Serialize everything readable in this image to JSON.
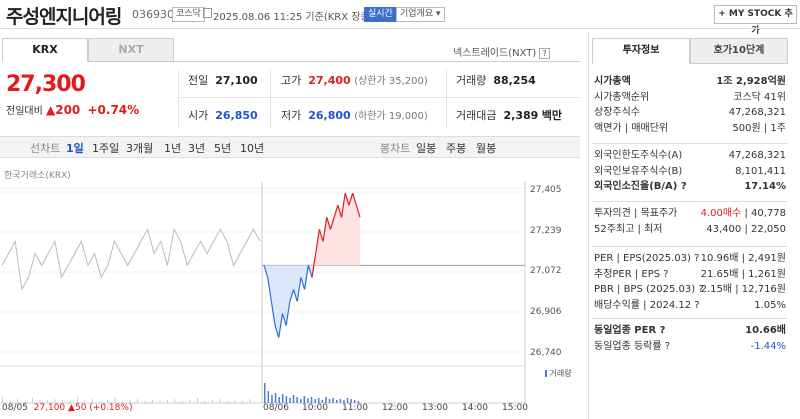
{
  "header": {
    "stock_name": "주성엔지니어링",
    "stock_code": "036930",
    "market_badge": "코스닥",
    "datetime": "2025.08.06 11:25 기준(KRX 장중)",
    "realtime_badge": "실시간",
    "company_overview": "기업개요",
    "mystock_button": "+ MY STOCK 추가"
  },
  "tabs": {
    "krx": "KRX",
    "nxt": "NXT",
    "nxt_link": "넥스트레이드(NXT)"
  },
  "quote": {
    "price": "27,300",
    "change_label": "전일대비",
    "change_arrow": "▲",
    "change_value": "200",
    "change_pct": "+0.74%"
  },
  "info": {
    "prev_label": "전일",
    "prev_value": "27,100",
    "high_label": "고가",
    "high_value": "27,400",
    "upper_limit": "(상한가 35,200)",
    "volume_label": "거래량",
    "volume_value": "88,254",
    "open_label": "시가",
    "open_value": "26,850",
    "low_label": "저가",
    "low_value": "26,800",
    "lower_limit": "(하한가 19,000)",
    "amount_label": "거래대금",
    "amount_value": "2,389",
    "amount_unit": "백만"
  },
  "periods": {
    "line": "선차트",
    "items": [
      "1일",
      "1주일",
      "3개월",
      "1년",
      "3년",
      "5년",
      "10년"
    ],
    "candle": "봉차트",
    "candle_items": [
      "일봉",
      "주봉",
      "월봉"
    ]
  },
  "chart": {
    "exchange_label": "한국거래소(KRX)",
    "volume_legend": "거래량",
    "bottom_date": "08/05",
    "bottom_price": "27,100",
    "bottom_change": "▲50",
    "bottom_pct": "(+0.18%)"
  },
  "chart_data": {
    "type": "line",
    "y_ticks": [
      "27,405",
      "27,239",
      "27,072",
      "26,906",
      "26,740"
    ],
    "ylim": [
      26740,
      27405
    ],
    "x_ticks": [
      "08/06",
      "10:00",
      "11:00",
      "12:00",
      "13:00",
      "14:00",
      "15:00"
    ],
    "reference_price": 27100,
    "prev_day_series": [
      27100,
      27150,
      27200,
      27000,
      27050,
      27150,
      27100,
      27150,
      27200,
      27050,
      27100,
      27150,
      27200,
      27100,
      27150,
      27050,
      27100,
      27200,
      27150,
      27100,
      27150,
      27200,
      27250,
      27150,
      27200,
      27100,
      27250,
      27200,
      27100,
      27150,
      27200,
      27150,
      27200,
      27250,
      27200,
      27100,
      27150,
      27200,
      27250,
      27200
    ],
    "today_series": [
      27100,
      27050,
      26950,
      26850,
      26800,
      26900,
      26850,
      26950,
      27000,
      26950,
      27050,
      27000,
      27100,
      27050,
      27150,
      27250,
      27200,
      27300,
      27250,
      27300,
      27350,
      27300,
      27400,
      27350,
      27400,
      27350,
      27300
    ]
  },
  "right_panel": {
    "tab_invest": "투자정보",
    "tab_orderbook": "호가10단계",
    "group1": [
      {
        "label": "시가총액",
        "value": "1조 2,928억원",
        "bold": true
      },
      {
        "label": "시가총액순위",
        "value": "코스닥 41위"
      },
      {
        "label": "상장주식수",
        "value": "47,268,321"
      },
      {
        "label": "액면가 | 매매단위",
        "value": "500원 | 1주"
      }
    ],
    "group2": [
      {
        "label": "외국인한도주식수(A)",
        "value": "47,268,321"
      },
      {
        "label": "외국인보유주식수(B)",
        "value": "8,101,411"
      },
      {
        "label": "외국인소진율(B/A) ?",
        "value": "17.14%",
        "bold": true
      }
    ],
    "group3": [
      {
        "label": "투자의견 | 목표주가",
        "value_red": "4.00매수",
        "value": "| 40,778"
      },
      {
        "label": "52주최고 | 최저",
        "value": "43,400 | 22,050"
      }
    ],
    "group4": [
      {
        "label": "PER | EPS(2025.03) ?",
        "value": "10.96배 | 2,491원"
      },
      {
        "label": "추정PER | EPS ?",
        "value": "21.65배 | 1,261원"
      },
      {
        "label": "PBR | BPS (2025.03) ?",
        "value": "2.15배 | 12,716원"
      },
      {
        "label": "배당수익률 | 2024.12 ?",
        "value": "1.05%"
      }
    ],
    "group5": [
      {
        "label": "동일업종 PER ?",
        "value": "10.66배",
        "bold": true
      },
      {
        "label": "동일업종 등락률 ?",
        "value": "-1.44%",
        "blue": true
      }
    ]
  }
}
